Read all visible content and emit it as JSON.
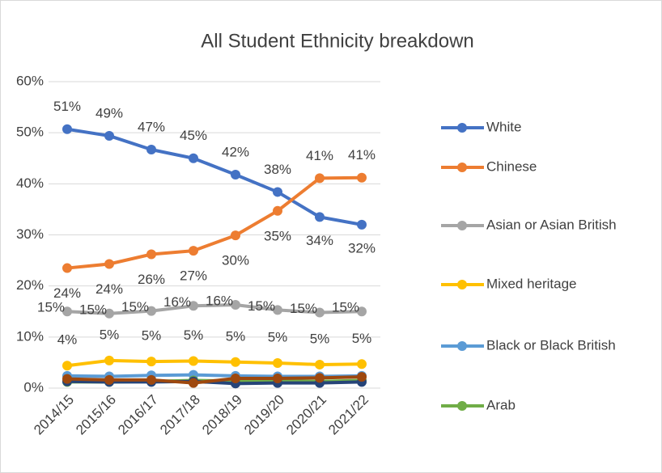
{
  "chart_data": {
    "type": "line",
    "title": "All Student Ethnicity breakdown",
    "categories": [
      "2014/15",
      "2015/16",
      "2016/17",
      "2017/18",
      "2018/19",
      "2019/20",
      "2020/21",
      "2021/22"
    ],
    "ylim": [
      0,
      60
    ],
    "yticks": [
      {
        "value": 0,
        "label": "0%"
      },
      {
        "value": 10,
        "label": "10%"
      },
      {
        "value": 20,
        "label": "20%"
      },
      {
        "value": 30,
        "label": "30%"
      },
      {
        "value": 40,
        "label": "40%"
      },
      {
        "value": 50,
        "label": "50%"
      },
      {
        "value": 60,
        "label": "60%"
      }
    ],
    "grid": true,
    "legend": "right",
    "series": [
      {
        "name": "White",
        "color": "#4472c4",
        "values": [
          50.7,
          49.4,
          46.7,
          45.0,
          41.8,
          38.4,
          33.5,
          32.0
        ],
        "value_labels": [
          "51%",
          "49%",
          "47%",
          "45%",
          "42%",
          "38%",
          "34%",
          "32%"
        ]
      },
      {
        "name": "Chinese",
        "color": "#ed7d31",
        "values": [
          23.5,
          24.3,
          26.2,
          26.9,
          29.9,
          34.7,
          41.1,
          41.2
        ],
        "value_labels": [
          "24%",
          "24%",
          "26%",
          "27%",
          "30%",
          "35%",
          "41%",
          "41%"
        ]
      },
      {
        "name": "Asian or Asian British",
        "color": "#a5a5a5",
        "values": [
          15.0,
          14.6,
          15.1,
          16.1,
          16.3,
          15.3,
          14.8,
          15.0
        ],
        "value_labels": [
          "15%",
          "15%",
          "15%",
          "16%",
          "16%",
          "15%",
          "15%",
          "15%"
        ]
      },
      {
        "name": "Mixed heritage",
        "color": "#ffc000",
        "values": [
          4.4,
          5.4,
          5.2,
          5.3,
          5.1,
          4.9,
          4.6,
          4.7
        ],
        "value_labels": [
          "4%",
          "5%",
          "5%",
          "5%",
          "5%",
          "5%",
          "5%",
          "5%"
        ]
      },
      {
        "name": "Black or Black British",
        "color": "#5b9bd5",
        "values": [
          2.4,
          2.3,
          2.5,
          2.6,
          2.4,
          2.3,
          2.3,
          2.4
        ]
      },
      {
        "name": "Arab",
        "color": "#70ad47",
        "values": [
          1.2,
          1.2,
          1.3,
          1.5,
          1.4,
          1.4,
          1.3,
          1.5
        ]
      },
      {
        "color": "#264478",
        "values": [
          1.3,
          1.2,
          1.2,
          1.3,
          0.9,
          1.0,
          1.0,
          1.2
        ]
      },
      {
        "color": "#9e480e",
        "values": [
          1.8,
          1.6,
          1.6,
          1.0,
          1.9,
          1.9,
          2.0,
          2.2
        ]
      }
    ]
  }
}
